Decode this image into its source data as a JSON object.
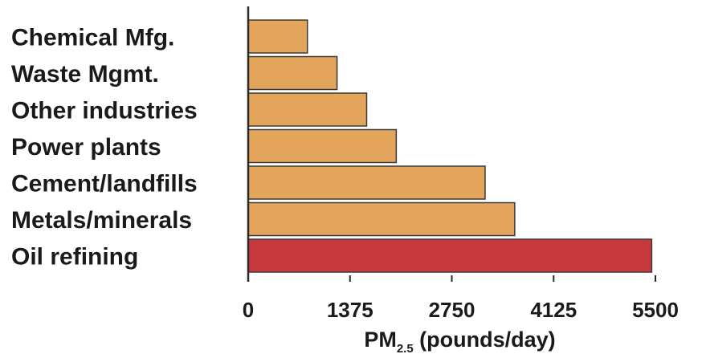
{
  "chart_data": {
    "type": "bar",
    "orientation": "horizontal",
    "categories": [
      "Chemical Mfg.",
      "Waste Mgmt.",
      "Other industries",
      "Power plants",
      "Cement/landfills",
      "Metals/minerals",
      "Oil refining"
    ],
    "values": [
      800,
      1200,
      1600,
      2000,
      3200,
      3600,
      5450
    ],
    "colors": [
      "#e3a45c",
      "#e3a45c",
      "#e3a45c",
      "#e3a45c",
      "#e3a45c",
      "#e3a45c",
      "#c8393e"
    ],
    "xlim": [
      0,
      5500
    ],
    "xticks": [
      0,
      1375,
      2750,
      4125,
      5500
    ],
    "xtick_labels": [
      "0",
      "1375",
      "2750",
      "4125",
      "5500"
    ],
    "xlabel": {
      "main": "PM",
      "sub": "2.5",
      "rest": " (pounds/day)"
    },
    "grid": false
  }
}
